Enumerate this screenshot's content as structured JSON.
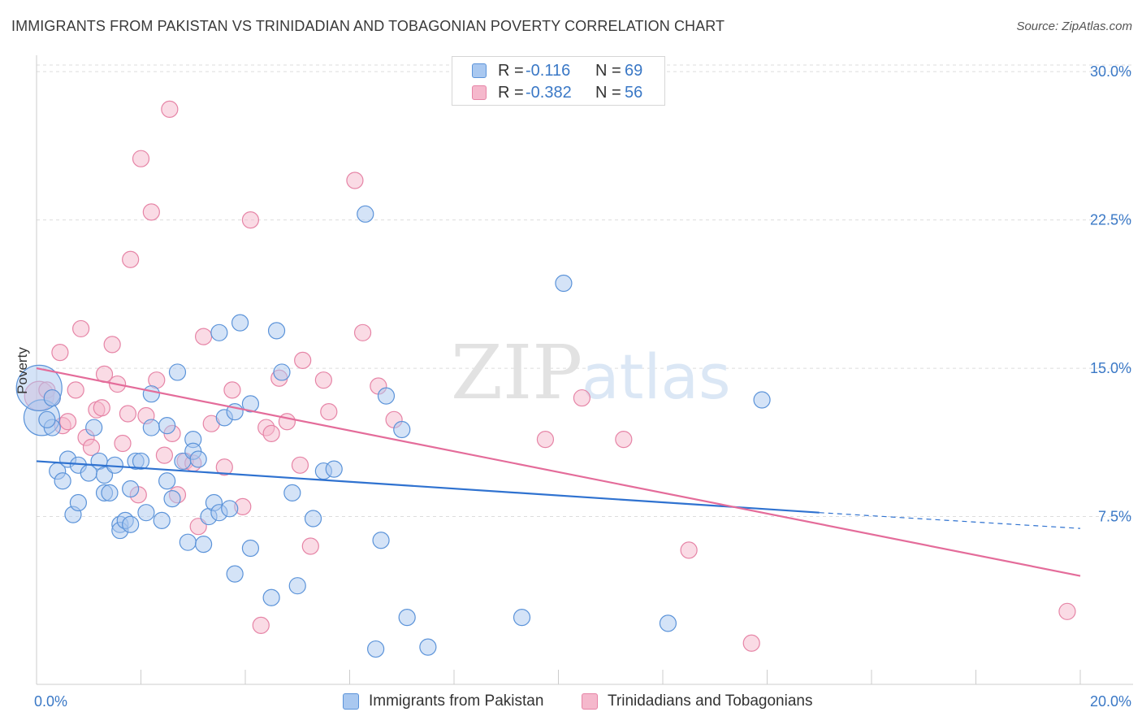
{
  "title": "IMMIGRANTS FROM PAKISTAN VS TRINIDADIAN AND TOBAGONIAN POVERTY CORRELATION CHART",
  "source": "Source: ZipAtlas.com",
  "watermark": {
    "zip": "ZIP",
    "atlas": "atlas"
  },
  "colors": {
    "blue_fill": "#a9c8f0",
    "blue_stroke": "#5b93d9",
    "blue_line": "#2f72d0",
    "pink_fill": "#f5b8cc",
    "pink_stroke": "#e684a6",
    "pink_line": "#e46c9a",
    "tick_text": "#3a78c6",
    "grid": "#dddddd"
  },
  "legend_top": {
    "rows": [
      {
        "r_label": "R =",
        "r_value": "-0.116",
        "n_label": "N =",
        "n_value": "69"
      },
      {
        "r_label": "R =",
        "r_value": "-0.382",
        "n_label": "N =",
        "n_value": "56"
      }
    ]
  },
  "legend_bottom": {
    "items": [
      {
        "label": "Immigrants from Pakistan"
      },
      {
        "label": "Trinidadians and Tobagonians"
      }
    ]
  },
  "chart_data": {
    "type": "scatter",
    "title": "IMMIGRANTS FROM PAKISTAN VS TRINIDADIAN AND TOBAGONIAN POVERTY CORRELATION CHART",
    "xlabel": "",
    "ylabel": "Poverty",
    "xlim": [
      0,
      20
    ],
    "ylim": [
      0,
      30.5
    ],
    "x_tick_labels": [
      "0.0%",
      "20.0%"
    ],
    "y_ticks": [
      7.5,
      15.0,
      22.5,
      30.0
    ],
    "y_tick_labels": [
      "7.5%",
      "15.0%",
      "22.5%",
      "30.0%"
    ],
    "grid": true,
    "series": [
      {
        "name": "Immigrants from Pakistan",
        "color": "#a9c8f0",
        "trend": {
          "x0": 0.0,
          "y0": 10.3,
          "x1": 15.0,
          "y1": 7.7,
          "dash_to_x": 20.0,
          "dash_to_y": 6.9
        },
        "points": [
          [
            0.1,
            12.5,
            22
          ],
          [
            0.05,
            14.0,
            28
          ],
          [
            0.3,
            13.5,
            10
          ],
          [
            0.3,
            12.0,
            10
          ],
          [
            0.4,
            9.8,
            10
          ],
          [
            0.5,
            9.3,
            10
          ],
          [
            0.6,
            10.4,
            10
          ],
          [
            0.7,
            7.6,
            10
          ],
          [
            0.8,
            8.2,
            10
          ],
          [
            0.8,
            10.1,
            10
          ],
          [
            1.0,
            9.7,
            10
          ],
          [
            1.1,
            12.0,
            10
          ],
          [
            1.2,
            10.3,
            10
          ],
          [
            1.3,
            9.6,
            10
          ],
          [
            1.3,
            8.7,
            10
          ],
          [
            1.4,
            8.7,
            10
          ],
          [
            1.5,
            10.1,
            10
          ],
          [
            1.6,
            7.1,
            10
          ],
          [
            1.6,
            6.8,
            10
          ],
          [
            1.7,
            7.3,
            10
          ],
          [
            1.8,
            8.9,
            10
          ],
          [
            1.8,
            7.1,
            10
          ],
          [
            1.9,
            10.3,
            10
          ],
          [
            2.0,
            10.3,
            10
          ],
          [
            2.1,
            7.7,
            10
          ],
          [
            2.2,
            12.0,
            10
          ],
          [
            2.2,
            13.7,
            10
          ],
          [
            2.4,
            7.3,
            10
          ],
          [
            2.5,
            9.3,
            10
          ],
          [
            2.5,
            12.1,
            10
          ],
          [
            2.6,
            8.4,
            10
          ],
          [
            2.7,
            14.8,
            10
          ],
          [
            2.8,
            10.3,
            10
          ],
          [
            2.9,
            6.2,
            10
          ],
          [
            3.0,
            11.4,
            10
          ],
          [
            3.0,
            10.8,
            10
          ],
          [
            3.1,
            10.4,
            10
          ],
          [
            3.2,
            6.1,
            10
          ],
          [
            3.3,
            7.5,
            10
          ],
          [
            3.4,
            8.2,
            10
          ],
          [
            3.5,
            7.7,
            10
          ],
          [
            3.5,
            16.8,
            10
          ],
          [
            3.6,
            12.5,
            10
          ],
          [
            3.7,
            7.9,
            10
          ],
          [
            3.8,
            12.8,
            10
          ],
          [
            3.9,
            17.3,
            10
          ],
          [
            3.8,
            4.6,
            10
          ],
          [
            4.1,
            13.2,
            10
          ],
          [
            4.1,
            5.9,
            10
          ],
          [
            4.5,
            3.4,
            10
          ],
          [
            4.6,
            16.9,
            10
          ],
          [
            4.7,
            14.8,
            10
          ],
          [
            4.9,
            8.7,
            10
          ],
          [
            5.0,
            4.0,
            10
          ],
          [
            5.3,
            7.4,
            10
          ],
          [
            5.5,
            9.8,
            10
          ],
          [
            5.7,
            9.9,
            10
          ],
          [
            6.3,
            22.8,
            10
          ],
          [
            6.5,
            0.8,
            10
          ],
          [
            6.6,
            6.3,
            10
          ],
          [
            6.7,
            13.6,
            10
          ],
          [
            7.0,
            11.9,
            10
          ],
          [
            7.1,
            2.4,
            10
          ],
          [
            7.5,
            0.9,
            10
          ],
          [
            9.3,
            2.4,
            10
          ],
          [
            10.1,
            19.3,
            10
          ],
          [
            12.1,
            2.1,
            10
          ],
          [
            13.9,
            13.4,
            10
          ],
          [
            0.2,
            12.4,
            10
          ]
        ]
      },
      {
        "name": "Trinidadians and Tobagonians",
        "color": "#f5b8cc",
        "trend": {
          "x0": 0.0,
          "y0": 15.0,
          "x1": 20.0,
          "y1": 4.5
        },
        "points": [
          [
            0.05,
            13.6,
            18
          ],
          [
            0.2,
            13.9,
            10
          ],
          [
            0.3,
            13.5,
            10
          ],
          [
            0.5,
            12.1,
            10
          ],
          [
            0.6,
            12.3,
            10
          ],
          [
            0.45,
            15.8,
            10
          ],
          [
            0.75,
            13.9,
            10
          ],
          [
            0.85,
            17.0,
            10
          ],
          [
            0.95,
            11.5,
            10
          ],
          [
            1.05,
            11.0,
            10
          ],
          [
            1.15,
            12.9,
            10
          ],
          [
            1.25,
            13.0,
            10
          ],
          [
            1.3,
            14.7,
            10
          ],
          [
            1.45,
            16.2,
            10
          ],
          [
            1.55,
            14.2,
            10
          ],
          [
            1.65,
            11.2,
            10
          ],
          [
            1.75,
            12.7,
            10
          ],
          [
            1.8,
            20.5,
            10
          ],
          [
            1.95,
            8.6,
            10
          ],
          [
            2.0,
            25.6,
            10
          ],
          [
            2.1,
            12.6,
            10
          ],
          [
            2.2,
            22.9,
            10
          ],
          [
            2.3,
            14.4,
            10
          ],
          [
            2.45,
            10.6,
            10
          ],
          [
            2.55,
            28.1,
            10
          ],
          [
            2.6,
            11.7,
            10
          ],
          [
            2.7,
            8.6,
            10
          ],
          [
            2.85,
            10.3,
            10
          ],
          [
            3.0,
            10.2,
            10
          ],
          [
            3.1,
            7.0,
            10
          ],
          [
            3.2,
            16.6,
            10
          ],
          [
            3.35,
            12.2,
            10
          ],
          [
            3.6,
            10.0,
            10
          ],
          [
            3.75,
            13.9,
            10
          ],
          [
            3.95,
            8.0,
            10
          ],
          [
            4.1,
            22.5,
            10
          ],
          [
            4.3,
            2.0,
            10
          ],
          [
            4.4,
            12.0,
            10
          ],
          [
            4.5,
            11.7,
            10
          ],
          [
            4.65,
            14.5,
            10
          ],
          [
            4.8,
            12.3,
            10
          ],
          [
            5.05,
            10.1,
            10
          ],
          [
            5.1,
            15.4,
            10
          ],
          [
            5.25,
            6.0,
            10
          ],
          [
            5.5,
            14.4,
            10
          ],
          [
            5.6,
            12.8,
            10
          ],
          [
            6.1,
            24.5,
            10
          ],
          [
            6.25,
            16.8,
            10
          ],
          [
            6.55,
            14.1,
            10
          ],
          [
            6.85,
            12.4,
            10
          ],
          [
            9.75,
            11.4,
            10
          ],
          [
            10.45,
            13.5,
            10
          ],
          [
            11.25,
            11.4,
            10
          ],
          [
            12.5,
            5.8,
            10
          ],
          [
            13.7,
            1.1,
            10
          ],
          [
            19.75,
            2.7,
            10
          ]
        ]
      }
    ]
  }
}
